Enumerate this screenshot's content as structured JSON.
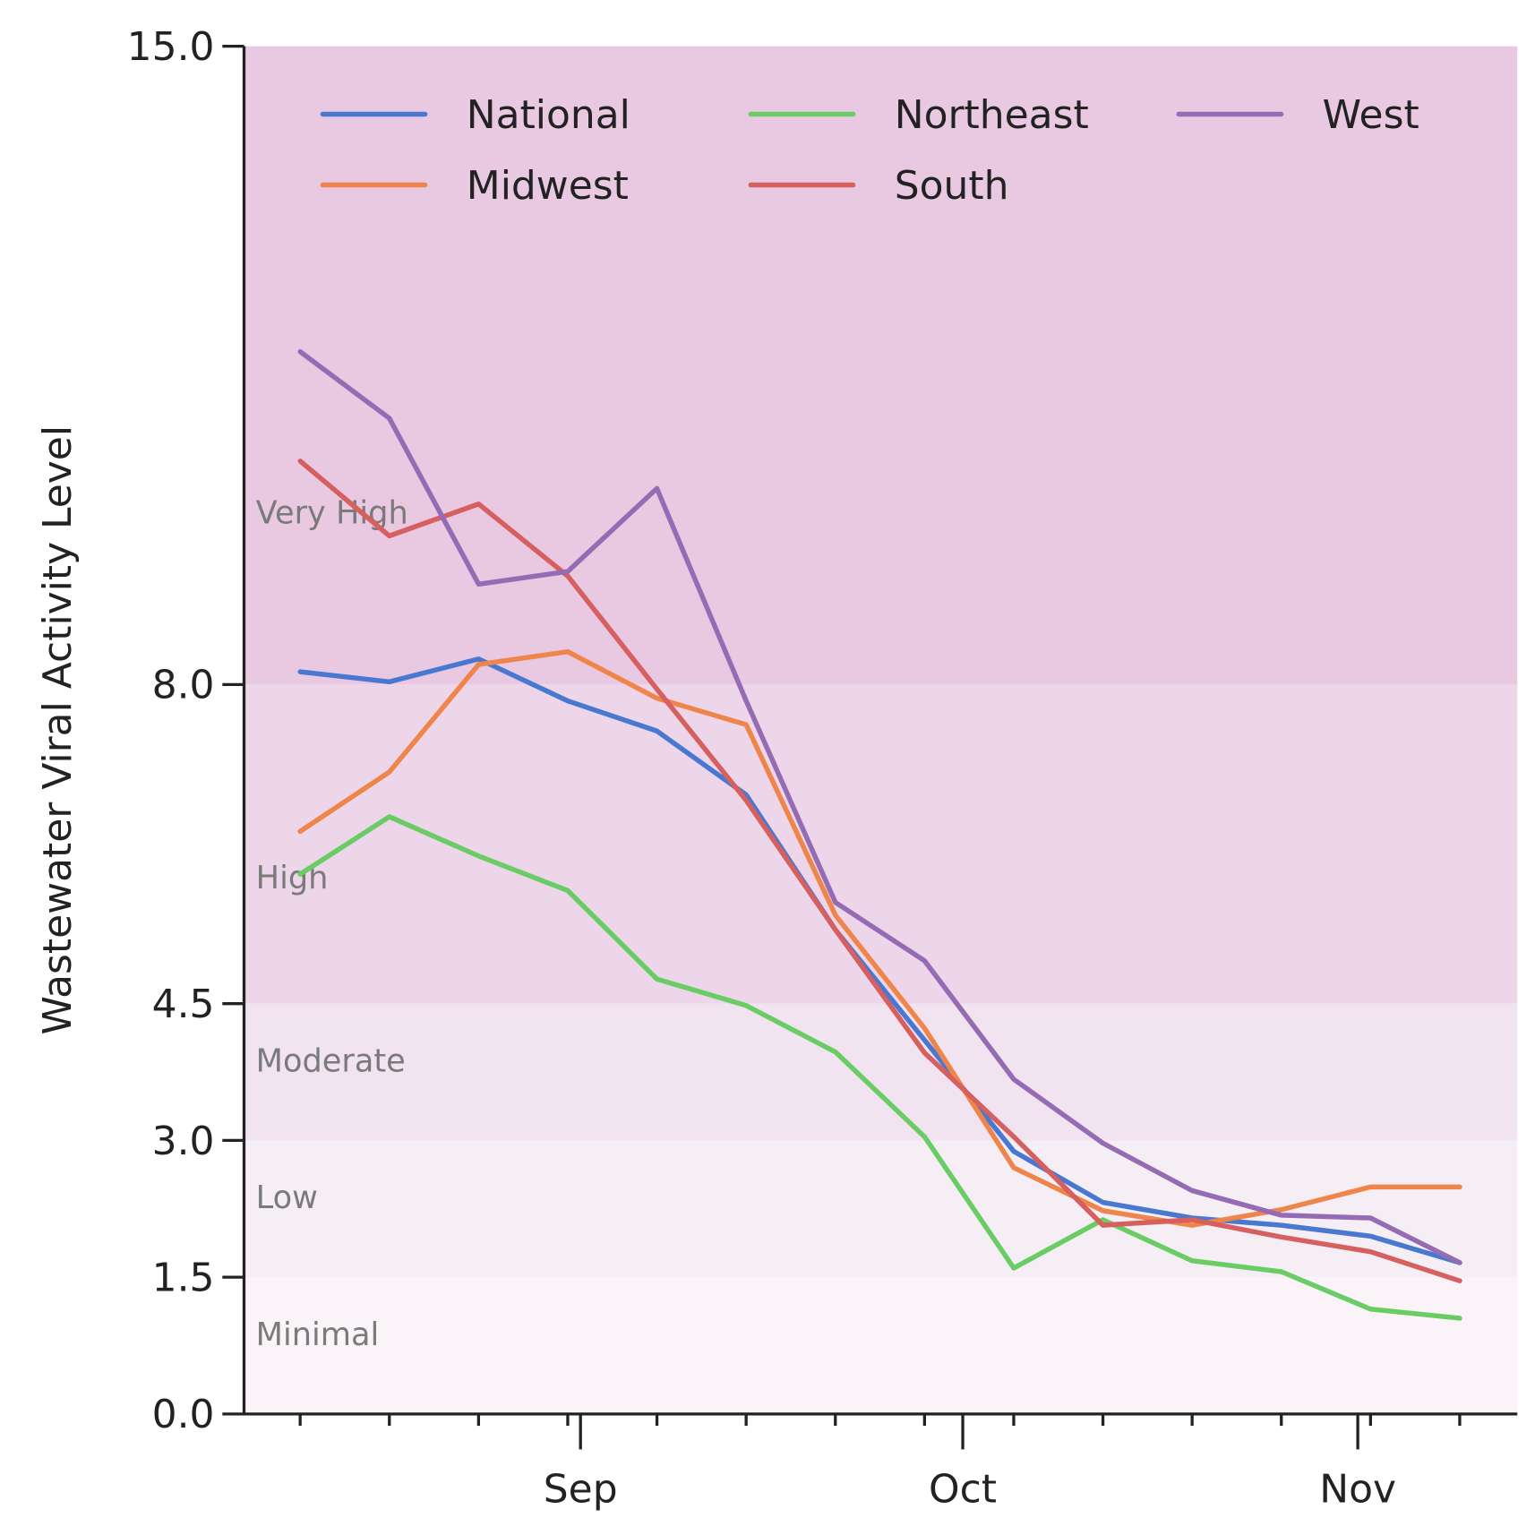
{
  "chart_data": {
    "type": "line",
    "ylabel": "Wastewater Viral Activity Level",
    "xlabel": "",
    "ylim": [
      0,
      15
    ],
    "yticks": [
      "0.0",
      "1.5",
      "3.0",
      "4.5",
      "8.0",
      "15.0"
    ],
    "ytick_values": [
      0,
      1.5,
      3,
      4.5,
      8,
      15
    ],
    "xtick_labels": [
      {
        "label": "Sep",
        "date": "09-01"
      },
      {
        "label": "Oct",
        "date": "10-01"
      },
      {
        "label": "Nov",
        "date": "11-01"
      }
    ],
    "x": [
      "08-10",
      "08-17",
      "08-24",
      "08-31",
      "09-07",
      "09-14",
      "09-21",
      "09-28",
      "10-05",
      "10-12",
      "10-19",
      "10-26",
      "11-02",
      "11-09"
    ],
    "bands": [
      {
        "label": "Minimal",
        "from": 0,
        "to": 1.5,
        "color": "#faf4f9"
      },
      {
        "label": "Low",
        "from": 1.5,
        "to": 3,
        "color": "#f6eef5"
      },
      {
        "label": "Moderate",
        "from": 3,
        "to": 4.5,
        "color": "#f2e3f1"
      },
      {
        "label": "High",
        "from": 4.5,
        "to": 8,
        "color": "#eed6ea"
      },
      {
        "label": "Very High",
        "from": 8,
        "to": 15,
        "color": "#e9c9e2"
      }
    ],
    "legend_position": "top",
    "grid": false,
    "series": [
      {
        "name": "National",
        "color": "#4878d0",
        "values": [
          8.14,
          8.03,
          8.28,
          7.82,
          7.49,
          6.79,
          5.31,
          4.1,
          2.88,
          2.32,
          2.15,
          2.07,
          1.95,
          1.66
        ]
      },
      {
        "name": "Midwest",
        "color": "#ee854a",
        "values": [
          6.39,
          7.04,
          8.22,
          8.36,
          7.85,
          7.56,
          5.47,
          4.23,
          2.7,
          2.23,
          2.07,
          2.24,
          2.49,
          2.49
        ]
      },
      {
        "name": "Northeast",
        "color": "#6acc64",
        "values": [
          5.92,
          6.55,
          6.12,
          5.74,
          4.77,
          4.48,
          3.97,
          3.04,
          1.6,
          2.13,
          1.68,
          1.56,
          1.15,
          1.05
        ]
      },
      {
        "name": "South",
        "color": "#d65f5f",
        "values": [
          10.45,
          9.63,
          9.98,
          9.19,
          7.95,
          6.73,
          5.31,
          3.96,
          3.04,
          2.07,
          2.13,
          1.94,
          1.78,
          1.46
        ]
      },
      {
        "name": "West",
        "color": "#956cb4",
        "values": [
          11.65,
          10.92,
          9.1,
          9.24,
          10.15,
          7.82,
          5.61,
          4.97,
          3.67,
          2.97,
          2.45,
          2.18,
          2.15,
          1.66
        ]
      }
    ]
  }
}
